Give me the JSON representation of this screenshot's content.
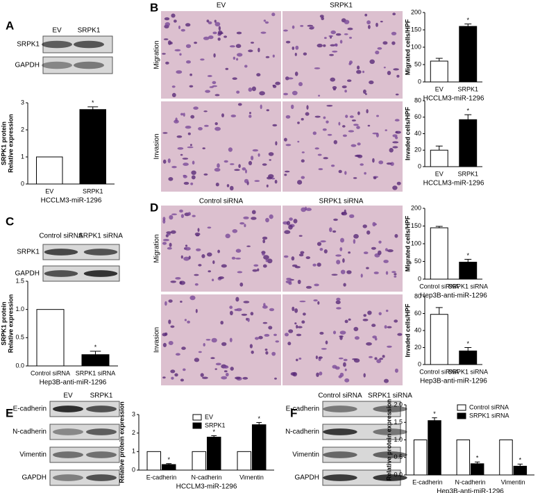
{
  "panels": [
    {
      "letter": "A",
      "columns": [
        "EV",
        "SRPK1"
      ],
      "rows": [
        "SRPK1",
        "GAPDH"
      ]
    },
    {
      "letter": "B",
      "columns": [
        "EV",
        "SRPK1"
      ],
      "rows": [
        "Migration",
        "Invasion"
      ]
    },
    {
      "letter": "C",
      "columns": [
        "Control siRNA",
        "SRPK1 siRNA"
      ],
      "rows": [
        "SRPK1",
        "GAPDH"
      ]
    },
    {
      "letter": "D",
      "columns": [
        "Control siRNA",
        "SRPK1 siRNA"
      ],
      "rows": [
        "Migration",
        "Invasion"
      ]
    },
    {
      "letter": "E",
      "columns": [
        "EV",
        "SRPK1"
      ],
      "rows": [
        "E-cadherin",
        "N-cadherin",
        "Vimentin",
        "GAPDH"
      ]
    },
    {
      "letter": "F",
      "columns": [
        "Control siRNA",
        "SRPK1 siRNA"
      ],
      "rows": [
        "E-cadherin",
        "N-cadherin",
        "Vimentin",
        "GAPDH"
      ]
    }
  ],
  "chart_data": [
    {
      "type": "bar",
      "ylabel": [
        "SRPK1 protein",
        "Relative expression"
      ],
      "xlabel": "HCCLM3-miR-1296",
      "categories": [
        "EV",
        "SRPK1"
      ],
      "values": [
        1,
        2.75
      ],
      "errors": [
        null,
        0.1
      ],
      "significance": [
        null,
        "*"
      ],
      "colors": [
        "#ffffff",
        "#000000"
      ],
      "ylim": [
        0,
        3
      ],
      "yticks": [
        0,
        1,
        2,
        3
      ]
    },
    {
      "type": "bar",
      "ylabel": [
        "Migrated cells/HPF"
      ],
      "xlabel": "HCCLM3-miR-1296",
      "categories": [
        "EV",
        "SRPK1"
      ],
      "values": [
        60,
        160
      ],
      "errors": [
        8,
        7
      ],
      "significance": [
        null,
        "*"
      ],
      "colors": [
        "#ffffff",
        "#000000"
      ],
      "ylim": [
        0,
        200
      ],
      "yticks": [
        0,
        50,
        100,
        150,
        200
      ]
    },
    {
      "type": "bar",
      "ylabel": [
        "Invaded cells/HPF"
      ],
      "xlabel": "HCCLM3-miR-1296",
      "categories": [
        "EV",
        "SRPK1"
      ],
      "values": [
        20,
        57
      ],
      "errors": [
        5,
        6
      ],
      "significance": [
        null,
        "*"
      ],
      "colors": [
        "#ffffff",
        "#000000"
      ],
      "ylim": [
        0,
        80
      ],
      "yticks": [
        0,
        20,
        40,
        60,
        80
      ]
    },
    {
      "type": "bar",
      "ylabel": [
        "SRPK1 protein",
        "Relative expression"
      ],
      "xlabel": "Hep3B-anti-miR-1296",
      "categories": [
        "Control siRNA",
        "SRPK1 siRNA"
      ],
      "values": [
        1,
        0.2
      ],
      "errors": [
        null,
        0.06
      ],
      "significance": [
        null,
        "*"
      ],
      "colors": [
        "#ffffff",
        "#000000"
      ],
      "ylim": [
        0,
        1.5
      ],
      "yticks": [
        {
          "value": 0,
          "label": "0.0"
        },
        0.5,
        {
          "value": 1,
          "label": "1.0"
        },
        1.5
      ]
    },
    {
      "type": "bar",
      "ylabel": [
        "Migrated cells/HPF"
      ],
      "xlabel": "Hep3B-anti-miR-1296",
      "categories": [
        "Control siRNA",
        "SRPK1 siRNA"
      ],
      "values": [
        145,
        48
      ],
      "errors": [
        4,
        8
      ],
      "significance": [
        null,
        "*"
      ],
      "colors": [
        "#ffffff",
        "#000000"
      ],
      "ylim": [
        0,
        200
      ],
      "yticks": [
        0,
        50,
        100,
        150,
        200
      ]
    },
    {
      "type": "bar",
      "ylabel": [
        "Invaded cells/HPF"
      ],
      "xlabel": "Hep3B-anti-miR-1296",
      "categories": [
        "Control siRNA",
        "SRPK1 siRNA"
      ],
      "values": [
        59,
        16
      ],
      "errors": [
        8,
        4
      ],
      "significance": [
        null,
        "*"
      ],
      "colors": [
        "#ffffff",
        "#000000"
      ],
      "ylim": [
        0,
        80
      ],
      "yticks": [
        0,
        20,
        40,
        60,
        80
      ]
    },
    {
      "type": "grouped-bar",
      "ylabel": [
        "Relative protein expression"
      ],
      "xlabel": "HCCLM3-miR-1296",
      "categories": [
        "E-cadherin",
        "N-cadherin",
        "Vimentin"
      ],
      "series": [
        {
          "name": "EV",
          "color": "#ffffff",
          "values": [
            1,
            1,
            1
          ],
          "errors": [
            null,
            null,
            null
          ],
          "significance": [
            null,
            null,
            null
          ]
        },
        {
          "name": "SRPK1",
          "color": "#000000",
          "values": [
            0.3,
            1.78,
            2.45
          ],
          "errors": [
            0.05,
            0.08,
            0.12
          ],
          "significance": [
            "*",
            "*",
            "*"
          ]
        }
      ],
      "ylim": [
        0,
        3
      ],
      "yticks": [
        0,
        1,
        2,
        3
      ]
    },
    {
      "type": "grouped-bar",
      "ylabel": [
        "Relative protein expression"
      ],
      "xlabel": "Hep3B-anti-miR-1296",
      "categories": [
        "E-cadherin",
        "N-cadherin",
        "Vimentin"
      ],
      "series": [
        {
          "name": "Control siRNA",
          "color": "#ffffff",
          "values": [
            1,
            1,
            1
          ],
          "errors": [
            null,
            null,
            null
          ],
          "significance": [
            null,
            null,
            null
          ]
        },
        {
          "name": "SRPK1 siRNA",
          "color": "#000000",
          "values": [
            1.55,
            0.32,
            0.25
          ],
          "errors": [
            0.08,
            0.05,
            0.06
          ],
          "significance": [
            "*",
            "*",
            "*"
          ]
        }
      ],
      "ylim": [
        0,
        2
      ],
      "yticks": [
        {
          "value": 0,
          "label": "0.0"
        },
        0.5,
        {
          "value": 1,
          "label": "1.0"
        },
        1.5,
        {
          "value": 2,
          "label": "2.0"
        }
      ]
    }
  ]
}
